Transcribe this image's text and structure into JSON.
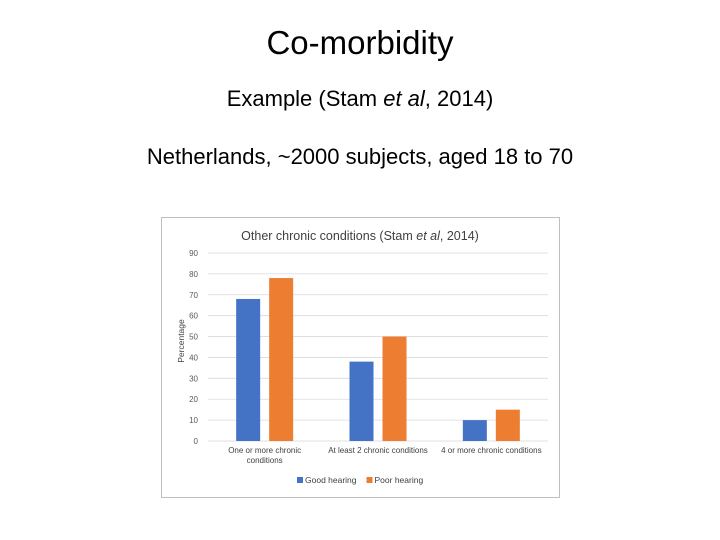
{
  "slide": {
    "title": "Co-morbidity",
    "line1": {
      "pre": "Example (Stam ",
      "em": "et al",
      "post": ", 2014)"
    },
    "line2": "Netherlands, ~2000 subjects, aged 18 to 70"
  },
  "chart_data": {
    "type": "bar",
    "title": {
      "pre": "Other chronic conditions (Stam ",
      "em": "et al",
      "post": ", 2014)"
    },
    "categories": [
      [
        "One or more chronic",
        "conditions"
      ],
      [
        "At least 2 chronic conditions"
      ],
      [
        "4 or more chronic conditions"
      ]
    ],
    "series": [
      {
        "name": "Good hearing",
        "color": "#4472c4",
        "values": [
          68,
          38,
          10
        ]
      },
      {
        "name": "Poor hearing",
        "color": "#ed7d31",
        "values": [
          78,
          50,
          15
        ]
      }
    ],
    "xlabel": "",
    "ylabel": "Percentage",
    "ylim": [
      0,
      90
    ],
    "yticks": [
      0,
      10,
      20,
      30,
      40,
      50,
      60,
      70,
      80,
      90
    ],
    "grid": true,
    "legend": "bottom"
  }
}
